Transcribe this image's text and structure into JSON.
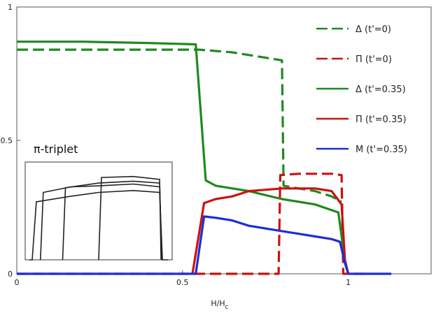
{
  "chart_data": {
    "type": "line",
    "xlabel": "H/H",
    "xlabel_sub": "c",
    "ylabel": "",
    "xlim": [
      0,
      1.25
    ],
    "ylim": [
      0,
      1
    ],
    "x_ticks": [
      {
        "v": 0,
        "label": "0"
      },
      {
        "v": 0.5,
        "label": "0.5"
      },
      {
        "v": 1,
        "label": "1"
      }
    ],
    "y_ticks": [
      {
        "v": 0,
        "label": "0"
      },
      {
        "v": 0.5,
        "label": "0.5"
      },
      {
        "v": 1,
        "label": "1"
      }
    ],
    "series": [
      {
        "name": "Δ (t'=0)",
        "color": "#1e8a1e",
        "dash": "dashed",
        "x": [
          0,
          0.2,
          0.4,
          0.55,
          0.65,
          0.75,
          0.8,
          0.805,
          0.85,
          0.9,
          0.95,
          0.98
        ],
        "y": [
          0.84,
          0.84,
          0.84,
          0.84,
          0.83,
          0.81,
          0.8,
          0.33,
          0.32,
          0.31,
          0.29,
          0.27
        ]
      },
      {
        "name": "Π (t'=0)",
        "color": "#cc1111",
        "dash": "dashed",
        "x": [
          0,
          0.2,
          0.4,
          0.6,
          0.79,
          0.795,
          0.85,
          0.9,
          0.95,
          0.98,
          0.985,
          1.06
        ],
        "y": [
          0,
          0,
          0,
          0,
          0,
          0.37,
          0.375,
          0.375,
          0.375,
          0.37,
          0,
          0
        ]
      },
      {
        "name": "Δ (t'=0.35)",
        "color": "#1e8a1e",
        "dash": "solid",
        "x": [
          0,
          0.2,
          0.4,
          0.54,
          0.57,
          0.6,
          0.7,
          0.8,
          0.9,
          0.97,
          0.99,
          1.0
        ],
        "y": [
          0.87,
          0.87,
          0.865,
          0.86,
          0.35,
          0.33,
          0.31,
          0.28,
          0.26,
          0.23,
          0.05,
          0
        ]
      },
      {
        "name": "Π (t'=0.35)",
        "color": "#cc1111",
        "dash": "solid",
        "x": [
          0.53,
          0.565,
          0.6,
          0.65,
          0.7,
          0.75,
          0.8,
          0.85,
          0.9,
          0.95,
          0.98,
          0.99,
          1.0
        ],
        "y": [
          0,
          0.265,
          0.28,
          0.29,
          0.31,
          0.315,
          0.32,
          0.32,
          0.32,
          0.31,
          0.26,
          0.05,
          0
        ]
      },
      {
        "name": "M (t'=0.35)",
        "color": "#1a2fd6",
        "dash": "solid",
        "x": [
          0,
          0.2,
          0.4,
          0.54,
          0.565,
          0.6,
          0.65,
          0.7,
          0.75,
          0.8,
          0.85,
          0.9,
          0.95,
          0.975,
          0.99,
          1.0,
          1.13
        ],
        "y": [
          0,
          0,
          0,
          0,
          0.215,
          0.21,
          0.2,
          0.18,
          0.17,
          0.16,
          0.15,
          0.14,
          0.13,
          0.12,
          0.04,
          0,
          0
        ]
      }
    ],
    "inset": {
      "title": "π-triplet",
      "curves": [
        {
          "x": [
            0,
            0.02,
            0.05,
            0.3,
            0.5,
            0.75,
            0.94,
            0.96,
            1.0
          ],
          "y": [
            0,
            0,
            0.62,
            0.68,
            0.72,
            0.74,
            0.72,
            0,
            0
          ]
        },
        {
          "x": [
            0.08,
            0.1,
            0.3,
            0.5,
            0.75,
            0.94,
            0.955
          ],
          "y": [
            0,
            0.72,
            0.78,
            0.79,
            0.81,
            0.78,
            0
          ]
        },
        {
          "x": [
            0.24,
            0.26,
            0.5,
            0.75,
            0.94,
            0.955
          ],
          "y": [
            0,
            0.77,
            0.82,
            0.84,
            0.82,
            0
          ]
        },
        {
          "x": [
            0.5,
            0.52,
            0.75,
            0.94,
            0.95
          ],
          "y": [
            0,
            0.88,
            0.89,
            0.86,
            0
          ]
        }
      ]
    },
    "legend_position": "top-right"
  }
}
